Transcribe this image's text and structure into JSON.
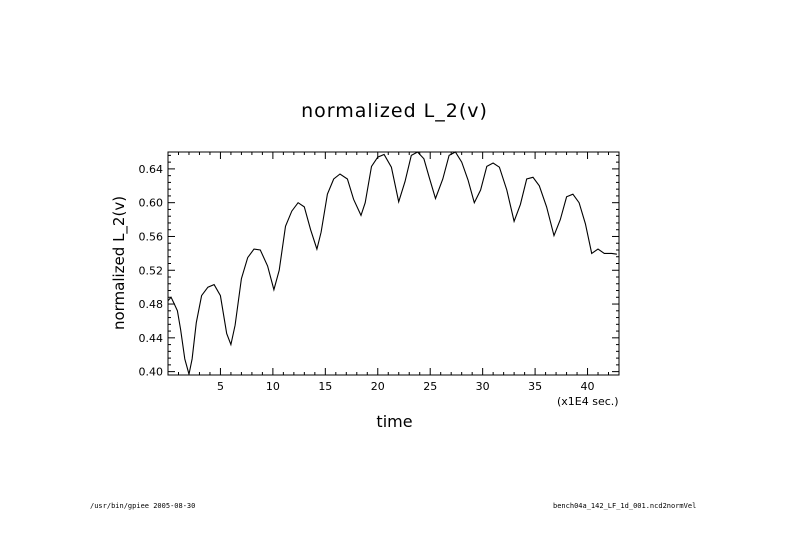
{
  "chart_data": {
    "type": "line",
    "title": "normalized L_2(v)",
    "xlabel": "time",
    "ylabel": "normalized L_2(v)",
    "x_units_note": "(x1E4 sec.)",
    "xlim": [
      0,
      43
    ],
    "ylim": [
      0.396,
      0.66
    ],
    "x_ticks": [
      5,
      10,
      15,
      20,
      25,
      30,
      35,
      40
    ],
    "y_ticks": [
      0.4,
      0.44,
      0.48,
      0.52,
      0.56,
      0.6,
      0.64
    ],
    "y_tick_labels": [
      "0.40",
      "0.44",
      "0.48",
      "0.52",
      "0.56",
      "0.60",
      "0.64"
    ],
    "grid": false,
    "series": [
      {
        "color": "#000000",
        "x": [
          0,
          0.3,
          0.6,
          0.9,
          1.2,
          1.6,
          2.0,
          2.3,
          2.7,
          3.2,
          3.8,
          4.4,
          5.0,
          5.6,
          6.0,
          6.4,
          7.0,
          7.6,
          8.2,
          8.8,
          9.5,
          10.1,
          10.6,
          11.2,
          11.8,
          12.4,
          13.0,
          13.6,
          14.2,
          14.6,
          15.2,
          15.8,
          16.4,
          17.1,
          17.7,
          18.4,
          18.8,
          19.4,
          20.0,
          20.6,
          21.3,
          22.0,
          22.6,
          23.2,
          23.8,
          24.4,
          24.9,
          25.5,
          26.2,
          26.8,
          27.4,
          28.0,
          28.6,
          29.2,
          29.8,
          30.4,
          31.0,
          31.6,
          32.3,
          33.0,
          33.6,
          34.2,
          34.8,
          35.4,
          36.1,
          36.8,
          37.4,
          38.0,
          38.6,
          39.2,
          39.8,
          40.4,
          41.0,
          41.6,
          42.3,
          42.8
        ],
        "y": [
          0.484,
          0.488,
          0.48,
          0.472,
          0.45,
          0.415,
          0.397,
          0.415,
          0.458,
          0.49,
          0.5,
          0.503,
          0.49,
          0.445,
          0.432,
          0.455,
          0.51,
          0.535,
          0.545,
          0.544,
          0.525,
          0.497,
          0.52,
          0.572,
          0.59,
          0.6,
          0.595,
          0.568,
          0.545,
          0.565,
          0.61,
          0.628,
          0.634,
          0.628,
          0.604,
          0.585,
          0.6,
          0.643,
          0.654,
          0.657,
          0.642,
          0.601,
          0.625,
          0.656,
          0.66,
          0.652,
          0.63,
          0.605,
          0.628,
          0.656,
          0.66,
          0.648,
          0.627,
          0.6,
          0.615,
          0.643,
          0.647,
          0.642,
          0.615,
          0.578,
          0.598,
          0.628,
          0.63,
          0.62,
          0.595,
          0.561,
          0.58,
          0.607,
          0.61,
          0.6,
          0.575,
          0.54,
          0.545,
          0.54,
          0.54,
          0.539
        ]
      }
    ]
  },
  "footer": {
    "left": "/usr/bin/gpiee  2005-08-30",
    "right": "bench04a_142_LF_1d_001.ncd2normVel"
  }
}
